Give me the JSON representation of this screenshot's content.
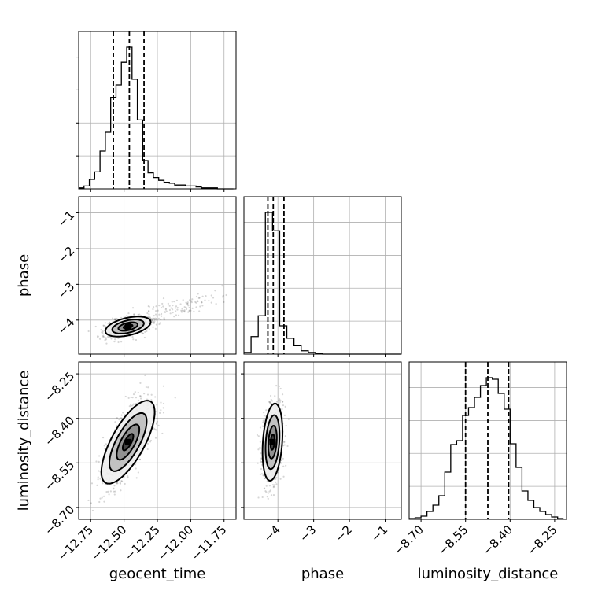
{
  "chart_data": {
    "type": "corner",
    "parameters": [
      {
        "name": "geocent_time",
        "label": "geocent_time",
        "range": [
          -12.84,
          -11.66
        ],
        "ticks": [
          -12.75,
          -12.5,
          -12.25,
          -12.0,
          -11.75
        ],
        "tick_labels": [
          "−12.75",
          "−12.50",
          "−12.25",
          "−12.00",
          "−11.75"
        ],
        "quantiles": [
          -12.58,
          -12.46,
          -12.35
        ]
      },
      {
        "name": "phase",
        "label": "phase",
        "range": [
          -4.95,
          -0.55
        ],
        "ticks": [
          -4,
          -3,
          -2,
          -1
        ],
        "tick_labels": [
          "−4",
          "−3",
          "−2",
          "−1"
        ],
        "quantiles": [
          -4.28,
          -4.13,
          -3.83
        ]
      },
      {
        "name": "luminosity_distance",
        "label": "luminosity_distance",
        "range": [
          -8.74,
          -8.21
        ],
        "ticks": [
          -8.7,
          -8.55,
          -8.4,
          -8.25
        ],
        "tick_labels": [
          "−8.70",
          "−8.55",
          "−8.40",
          "−8.25"
        ],
        "quantiles": [
          -8.55,
          -8.475,
          -8.405
        ]
      }
    ],
    "histograms": {
      "geocent_time": {
        "bin_edges": [
          -12.84,
          -12.8,
          -12.76,
          -12.72,
          -12.68,
          -12.64,
          -12.6,
          -12.56,
          -12.52,
          -12.48,
          -12.44,
          -12.4,
          -12.36,
          -12.32,
          -12.28,
          -12.24,
          -12.2,
          -12.16,
          -12.12,
          -12.08,
          -12.04,
          -12.0,
          -11.96,
          -11.92,
          -11.88,
          -11.84,
          -11.8,
          -11.76,
          -11.72,
          -11.68
        ],
        "counts": [
          1,
          3,
          10,
          18,
          40,
          60,
          97,
          110,
          134,
          150,
          116,
          73,
          30,
          17,
          12,
          9,
          7,
          6,
          4,
          4,
          3,
          3,
          2,
          1,
          1,
          1,
          0,
          0,
          0
        ]
      },
      "phase": {
        "bin_edges": [
          -4.95,
          -4.75,
          -4.55,
          -4.35,
          -4.15,
          -3.95,
          -3.75,
          -3.55,
          -3.35,
          -3.15,
          -2.95,
          -2.75,
          -2.55,
          -2.35,
          -2.15,
          -1.95,
          -1.75,
          -1.55,
          -1.35,
          -1.15,
          -0.95,
          -0.75,
          -0.55
        ],
        "counts": [
          2,
          21,
          46,
          170,
          148,
          34,
          19,
          10,
          4,
          2,
          1,
          0,
          0,
          0,
          0,
          0,
          0,
          0,
          0,
          0,
          0,
          0
        ]
      },
      "luminosity_distance": {
        "bin_edges": [
          -8.74,
          -8.72,
          -8.7,
          -8.68,
          -8.66,
          -8.64,
          -8.62,
          -8.6,
          -8.58,
          -8.56,
          -8.54,
          -8.52,
          -8.5,
          -8.48,
          -8.46,
          -8.44,
          -8.42,
          -8.4,
          -8.38,
          -8.36,
          -8.34,
          -8.32,
          -8.3,
          -8.28,
          -8.26,
          -8.24,
          -8.22
        ],
        "counts": [
          1,
          2,
          4,
          10,
          18,
          30,
          60,
          95,
          100,
          132,
          142,
          155,
          170,
          180,
          178,
          160,
          140,
          96,
          66,
          36,
          24,
          15,
          10,
          6,
          3,
          1
        ]
      }
    },
    "joint": [
      {
        "x": "geocent_time",
        "y": "phase",
        "center": [
          -12.47,
          -4.18
        ],
        "sd": [
          0.085,
          0.14
        ],
        "corr": 0.45,
        "tail": {
          "start": [
            -12.42,
            -4.05
          ],
          "end": [
            -11.8,
            -3.3
          ]
        }
      },
      {
        "x": "geocent_time",
        "y": "luminosity_distance",
        "center": [
          -12.47,
          -8.48
        ],
        "sd": [
          0.1,
          0.07
        ],
        "corr": 0.72
      },
      {
        "x": "phase",
        "y": "luminosity_distance",
        "center": [
          -4.15,
          -8.48
        ],
        "sd": [
          0.14,
          0.065
        ],
        "corr": 0.25
      }
    ],
    "grid": true,
    "xlabel": [
      "geocent_time",
      "phase",
      "luminosity_distance"
    ],
    "ylabel": [
      "phase",
      "luminosity_distance"
    ]
  }
}
